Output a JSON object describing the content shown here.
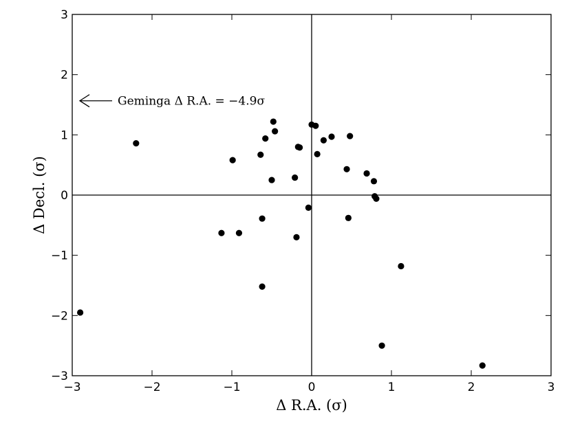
{
  "chart_data": {
    "type": "scatter",
    "title": "",
    "xlabel": "Δ R.A. (σ)",
    "ylabel": "Δ Decl. (σ)",
    "xlim": [
      -3,
      3
    ],
    "ylim": [
      -3,
      3
    ],
    "xticks": [
      -3,
      -2,
      -1,
      0,
      1,
      2,
      3
    ],
    "yticks": [
      -3,
      -2,
      -1,
      0,
      1,
      2,
      3
    ],
    "xtick_labels": [
      "−3",
      "−2",
      "−1",
      "0",
      "1",
      "2",
      "3"
    ],
    "ytick_labels": [
      "−3",
      "−2",
      "−1",
      "0",
      "1",
      "2",
      "3"
    ],
    "grid": false,
    "zero_lines": true,
    "marker_color": "#000000",
    "annotation": {
      "text": "Geminga Δ R.A. = −4.9σ",
      "arrow_direction": "left",
      "y": 1.6
    },
    "points": [
      {
        "x": -2.9,
        "y": -1.95
      },
      {
        "x": -2.2,
        "y": 0.86
      },
      {
        "x": -1.13,
        "y": -0.63
      },
      {
        "x": -0.91,
        "y": -0.63
      },
      {
        "x": -0.99,
        "y": 0.58
      },
      {
        "x": -0.64,
        "y": 0.67
      },
      {
        "x": -0.62,
        "y": -0.39
      },
      {
        "x": -0.62,
        "y": -1.52
      },
      {
        "x": -0.58,
        "y": 0.94
      },
      {
        "x": -0.5,
        "y": 0.25
      },
      {
        "x": -0.48,
        "y": 1.22
      },
      {
        "x": -0.46,
        "y": 1.06
      },
      {
        "x": -0.21,
        "y": 0.29
      },
      {
        "x": -0.19,
        "y": -0.7
      },
      {
        "x": -0.17,
        "y": 0.8
      },
      {
        "x": -0.15,
        "y": 0.79
      },
      {
        "x": -0.04,
        "y": -0.21
      },
      {
        "x": 0.0,
        "y": 1.17
      },
      {
        "x": 0.05,
        "y": 1.15
      },
      {
        "x": 0.07,
        "y": 0.68
      },
      {
        "x": 0.15,
        "y": 0.91
      },
      {
        "x": 0.25,
        "y": 0.97
      },
      {
        "x": 0.44,
        "y": 0.43
      },
      {
        "x": 0.46,
        "y": -0.38
      },
      {
        "x": 0.48,
        "y": 0.98
      },
      {
        "x": 0.69,
        "y": 0.36
      },
      {
        "x": 0.78,
        "y": 0.23
      },
      {
        "x": 0.79,
        "y": -0.02
      },
      {
        "x": 0.81,
        "y": -0.06
      },
      {
        "x": 0.88,
        "y": -2.5
      },
      {
        "x": 1.12,
        "y": -1.18
      },
      {
        "x": 2.14,
        "y": -2.83
      }
    ]
  }
}
